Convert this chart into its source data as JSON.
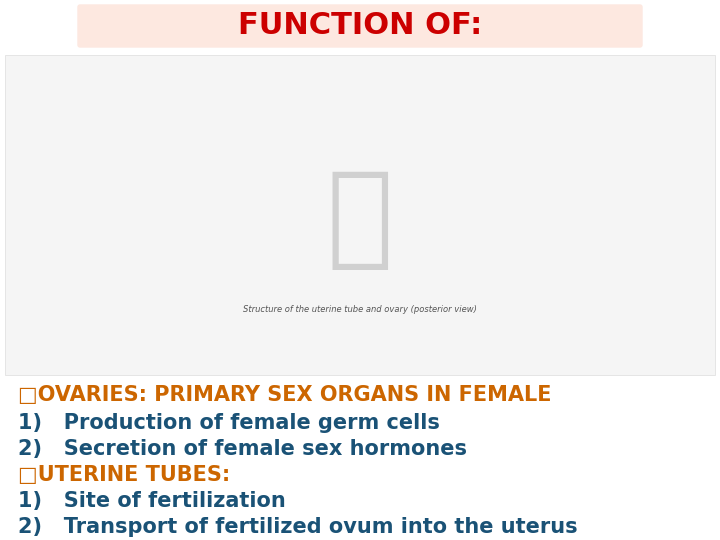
{
  "title": "FUNCTION OF:",
  "title_color": "#cc0000",
  "title_bg_color": "#fde8e0",
  "title_fontsize": 22,
  "title_bold": true,
  "ovaries_header": "□OVARIES: PRIMARY SEX ORGANS IN FEMALE",
  "ovaries_header_color": "#cc6600",
  "ovaries_header_fontsize": 15,
  "ovaries_header_bold": true,
  "ovaries_items": [
    "1)   Production of female germ cells",
    "2)   Secretion of female sex hormones"
  ],
  "ovaries_items_color": "#1a5276",
  "ovaries_items_fontsize": 15,
  "ovaries_items_bold": true,
  "uterine_header": "□UTERINE TUBES:",
  "uterine_header_color": "#cc6600",
  "uterine_header_fontsize": 15,
  "uterine_header_bold": true,
  "uterine_items": [
    "1)   Site of fertilization",
    "2)   Transport of fertilized ovum into the uterus"
  ],
  "uterine_items_color": "#1a5276",
  "uterine_items_fontsize": 15,
  "uterine_items_bold": true,
  "bg_color": "#ffffff",
  "image_placeholder_color": "#f5f5f5",
  "fig_width": 7.2,
  "fig_height": 5.4,
  "dpi": 100
}
